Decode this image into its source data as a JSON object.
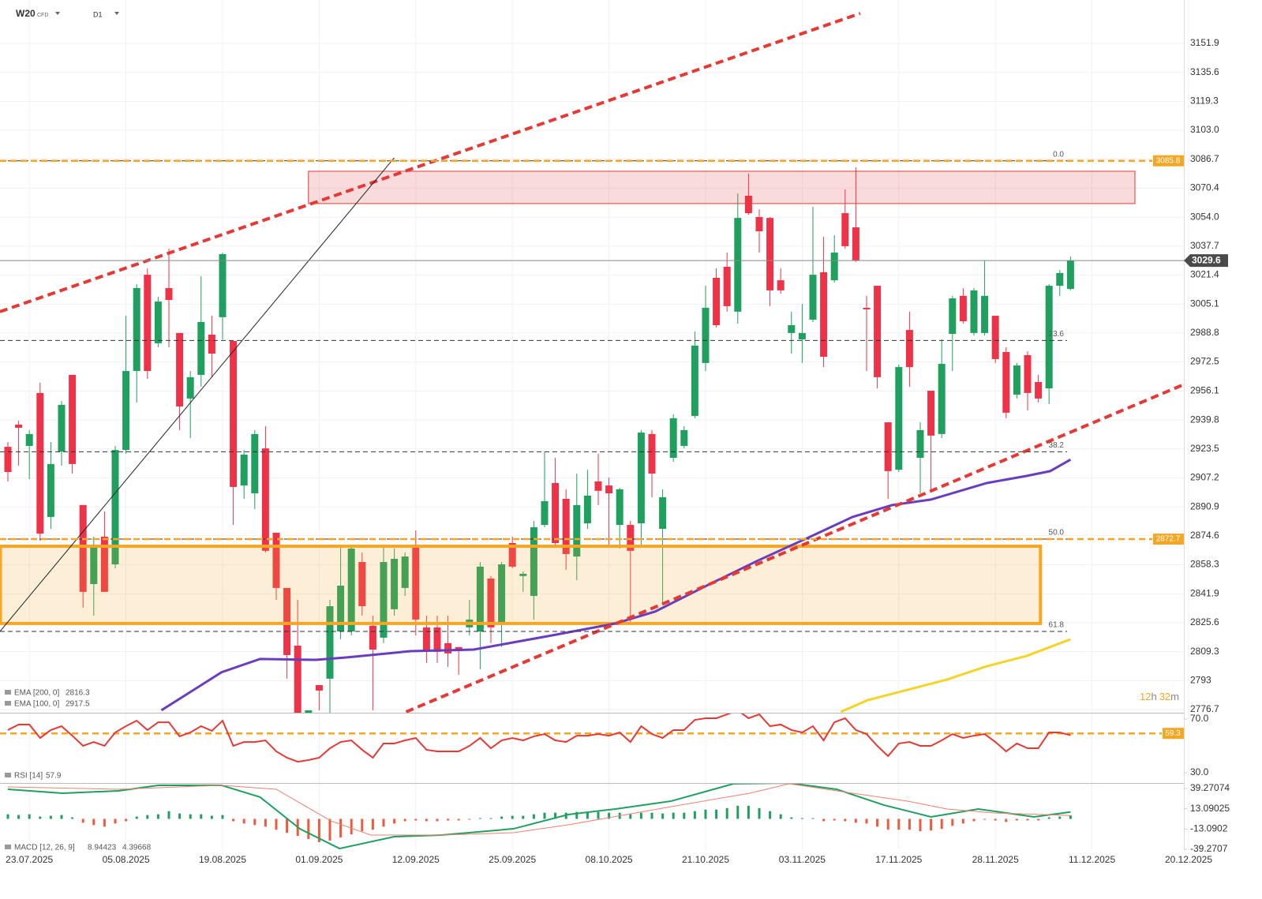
{
  "header": {
    "symbol": "W20",
    "instrument": "CFD",
    "timeframe": "D1",
    "countdown": [
      "12",
      "h",
      "32",
      "m"
    ]
  },
  "chart_data": [
    {
      "type": "candlestick",
      "xlim": [
        -0.735,
        109.56
      ],
      "xticks": [
        {
          "value": 2,
          "label": "23.07.2025"
        },
        {
          "value": 11,
          "label": "05.08.2025"
        },
        {
          "value": 20,
          "label": "19.08.2025"
        },
        {
          "value": 29,
          "label": "01.09.2025"
        },
        {
          "value": 38,
          "label": "12.09.2025"
        },
        {
          "value": 47,
          "label": "25.09.2025"
        },
        {
          "value": 56,
          "label": "08.10.2025"
        },
        {
          "value": 65,
          "label": "21.10.2025"
        },
        {
          "value": 74,
          "label": "03.11.2025"
        },
        {
          "value": 83,
          "label": "17.11.2025"
        },
        {
          "value": 92,
          "label": "28.11.2025"
        },
        {
          "value": 101,
          "label": "11.12.2025"
        },
        {
          "value": 110,
          "label": "20.12.2025"
        }
      ],
      "ylim": [
        2776.7,
        3151.9
      ],
      "yticks": [
        3151.9,
        3135.6,
        3119.3,
        {
          "value": 3103.0,
          "label": "3103.0"
        },
        3086.7,
        3070.4,
        {
          "value": 3054.0,
          "label": "3054.0"
        },
        3037.7,
        3021.4,
        3005.1,
        2988.8,
        2972.5,
        2956.1,
        2939.8,
        2923.5,
        2907.2,
        2890.9,
        2874.6,
        2858.3,
        2841.9,
        2825.6,
        2809.3,
        2793.0,
        2776.7
      ],
      "up_color": "#1fa05f",
      "down_color": "#ee3348",
      "candles": {
        "open": [
          2924.7,
          2937.2,
          2925.2,
          2955.0,
          2885.2,
          2922.0,
          2965.2,
          2891.9,
          2847.4,
          2874.1,
          2858.5,
          2922.9,
          2967.4,
          3021.6,
          2983.0,
          3014.1,
          2988.8,
          2951.9,
          2965.2,
          2987.9,
          2997.7,
          2984.3,
          2902.9,
          2898.5,
          2923.8,
          2876.3,
          2845.2,
          2812.7,
          2774.1,
          2790.5,
          2794.1,
          2820.7,
          2820.7,
          2859.8,
          2823.9,
          2817.2,
          2833.2,
          2845.2,
          2869.6,
          2823.0,
          2823.0,
          2814.1,
          2811.9,
          2823.0,
          2820.7,
          2850.5,
          2825.2,
          2870.5,
          2851.9,
          2840.7,
          2880.7,
          2904.3,
          2895.4,
          2862.9,
          2881.6,
          2905.2,
          2902.9,
          2880.7,
          2880.7,
          2881.6,
          2931.9,
          2878.5,
          2918.5,
          2925.2,
          2942.1,
          2971.9,
          3019.9,
          3026.1,
          3000.8,
          3066.1,
          3054.1,
          3053.6,
          3018.5,
          2988.8,
          2985.2,
          2996.3,
          3023.0,
          3018.5,
          3056.3,
          3048.3,
          3003.0,
          3015.4,
          2938.5,
          2911.8,
          2990.5,
          2918.5,
          2956.3,
          2931.9,
          2988.3,
          3009.7,
          2988.8,
          2988.8,
          2998.5,
          2978.1,
          2954.1,
          2976.3,
          2961.2,
          2957.6,
          3015.4,
          3013.6
        ],
        "high": [
          2927.4,
          2939.4,
          2934.1,
          2960.8,
          2927.4,
          2950.5,
          2965.2,
          2891.9,
          2874.1,
          2888.3,
          2925.2,
          2998.5,
          3016.3,
          3025.2,
          3009.2,
          3036.3,
          2988.8,
          2967.4,
          3020.8,
          2998.5,
          3034.1,
          2984.3,
          2922.9,
          2934.1,
          2936.3,
          2876.3,
          2845.2,
          2838.5,
          2776.3,
          2790.5,
          2838.5,
          2869.6,
          2869.6,
          2865.2,
          2829.6,
          2869.6,
          2867.4,
          2865.2,
          2877.6,
          2829.6,
          2829.6,
          2829.6,
          2811.9,
          2838.5,
          2859.8,
          2851.9,
          2859.8,
          2874.1,
          2854.5,
          2883.0,
          2922.0,
          2918.5,
          2900.8,
          2909.6,
          2911.8,
          2920.8,
          2907.4,
          2901.6,
          2883.0,
          2934.1,
          2934.1,
          2900.8,
          2943.0,
          2936.3,
          2989.6,
          3015.4,
          3025.2,
          3034.1,
          3067.4,
          3078.6,
          3058.5,
          3054.1,
          3025.2,
          3000.8,
          3005.2,
          3059.9,
          3043.0,
          3043.9,
          3069.7,
          3082.1,
          3009.7,
          3015.4,
          2938.5,
          2971.0,
          3000.8,
          2938.5,
          2956.3,
          2985.2,
          3009.7,
          3014.1,
          3014.1,
          3029.7,
          2998.5,
          2980.8,
          2971.9,
          2978.5,
          2965.2,
          3016.3,
          3024.3,
          3031.9
        ],
        "low": [
          2905.2,
          2914.1,
          2906.5,
          2871.8,
          2878.5,
          2914.1,
          2909.6,
          2834.1,
          2829.6,
          2843.0,
          2856.3,
          2920.8,
          2949.7,
          2963.0,
          2980.8,
          2980.8,
          2934.1,
          2929.6,
          2958.5,
          2963.9,
          2985.2,
          2880.7,
          2895.4,
          2889.6,
          2865.2,
          2838.5,
          2794.1,
          2774.1,
          2774.1,
          2776.3,
          2774.1,
          2816.3,
          2818.5,
          2829.6,
          2776.3,
          2814.1,
          2829.6,
          2840.7,
          2818.5,
          2803.0,
          2803.0,
          2800.7,
          2796.3,
          2818.5,
          2799.4,
          2814.1,
          2811.9,
          2856.3,
          2843.0,
          2827.4,
          2879.4,
          2869.6,
          2855.4,
          2849.6,
          2878.5,
          2891.9,
          2869.6,
          2867.4,
          2825.2,
          2869.6,
          2896.3,
          2836.3,
          2916.3,
          2923.8,
          2940.8,
          2967.4,
          2991.9,
          3000.8,
          2994.1,
          3055.4,
          3034.1,
          3003.9,
          3011.0,
          2977.2,
          2971.9,
          2995.0,
          2969.6,
          3017.2,
          3036.3,
          3028.8,
          2967.4,
          2957.6,
          2895.4,
          2910.5,
          2958.5,
          2898.5,
          2899.9,
          2929.6,
          2967.4,
          2994.1,
          2987.4,
          2987.4,
          2971.9,
          2940.8,
          2951.9,
          2945.2,
          2949.7,
          2948.8,
          3009.7,
          3012.8
        ],
        "close": [
          2910.5,
          2935.4,
          2931.9,
          2875.8,
          2915.0,
          2948.3,
          2915.0,
          2843.0,
          2869.6,
          2843.0,
          2922.9,
          2967.4,
          3014.1,
          2967.4,
          3006.5,
          3007.4,
          2947.4,
          2963.9,
          2995.0,
          2977.2,
          3033.2,
          2902.1,
          2920.3,
          2931.9,
          2866.1,
          2845.2,
          2807.4,
          2774.1,
          2776.3,
          2787.4,
          2834.9,
          2846.5,
          2867.4,
          2834.9,
          2810.5,
          2859.8,
          2861.6,
          2862.9,
          2827.4,
          2809.2,
          2809.2,
          2808.3,
          2809.6,
          2827.4,
          2857.2,
          2823.0,
          2858.5,
          2857.2,
          2853.2,
          2879.4,
          2894.1,
          2870.5,
          2864.3,
          2891.9,
          2897.2,
          2899.9,
          2898.5,
          2900.8,
          2866.1,
          2932.7,
          2909.6,
          2896.3,
          2940.8,
          2934.1,
          2981.7,
          3003.0,
          2993.2,
          3003.9,
          3053.6,
          3056.3,
          3046.1,
          3012.8,
          3012.8,
          2993.2,
          2988.8,
          3021.6,
          2975.4,
          3034.1,
          3037.7,
          3029.7,
          3002.1,
          2963.9,
          2911.0,
          2969.6,
          2969.6,
          2934.1,
          2931.0,
          2971.4,
          3008.3,
          2995.4,
          3012.8,
          3009.7,
          2974.1,
          2943.9,
          2970.5,
          2955.0,
          2951.9,
          3015.4,
          3022.6,
          3029.6
        ]
      },
      "series": [
        {
          "name": "EMA [200, 0]",
          "color": "#f5d327",
          "x": [
            77.6,
            80.1,
            83.8,
            87.5,
            91.2,
            94.9,
            99
          ],
          "values": [
            2775.4,
            2782.0,
            2787.8,
            2793.6,
            2801.1,
            2806.9,
            2816.3
          ]
        },
        {
          "name": "EMA [100, 0]",
          "color": "#6a3dbf",
          "x": [
            14.3,
            19.9,
            23.5,
            28.7,
            31.6,
            37.5,
            43.4,
            50.7,
            56.6,
            60.3,
            65.4,
            69.9,
            74.3,
            78.7,
            82.4,
            86.0,
            91.2,
            94.9,
            97.1,
            99
          ],
          "values": [
            2776.3,
            2797.7,
            2805.2,
            2804.7,
            2806.1,
            2809.6,
            2810.5,
            2818.5,
            2825.2,
            2831.9,
            2847.4,
            2860.7,
            2872.8,
            2885.2,
            2891.9,
            2895.0,
            2904.3,
            2908.3,
            2911.0,
            2917.5
          ]
        }
      ],
      "levels": [
        {
          "value": 3085.8,
          "color": "#f5a623"
        },
        {
          "value": 2872.7,
          "color": "#f5a623"
        }
      ],
      "fib_levels": [
        {
          "label": "0.0",
          "value": 3085.8
        },
        {
          "label": "23.6",
          "value": 2984.6
        },
        {
          "label": "38.2",
          "value": 2921.9
        },
        {
          "label": "50.0",
          "value": 2872.7
        },
        {
          "label": "61.8",
          "value": 2820.7
        }
      ],
      "zones": [
        {
          "x": [
            28.0,
            105.0
          ],
          "y": [
            3061.7,
            3079.9
          ],
          "color": "#e53935"
        },
        {
          "x": [
            -0.7,
            96.2
          ],
          "y": [
            2825.2,
            2868.7
          ],
          "color": "#f5a623"
        }
      ],
      "trendlines": [
        {
          "x": [
            -0.74,
            79.4
          ],
          "y": [
            3000.8,
            3168.8
          ],
          "color": "#e53935",
          "dashed": true
        },
        {
          "x": [
            37.1,
            109.6
          ],
          "y": [
            2775.4,
            2959.9
          ],
          "color": "#e53935",
          "dashed": true
        },
        {
          "x": [
            -0.74,
            36.0
          ],
          "y": [
            2820.7,
            3087.5
          ],
          "color": "#222222",
          "dashed": false
        }
      ]
    },
    {
      "type": "line",
      "ylim": [
        30,
        70
      ],
      "yticks": [
        {
          "value": 70,
          "label": "70.0"
        },
        {
          "value": 30,
          "label": "30.0"
        }
      ],
      "levels": [
        {
          "value": 59.3,
          "color": "#f5a623"
        }
      ],
      "series": [
        {
          "name": "RSI [14]",
          "color": "#e53935",
          "values": [
            61.8,
            65.9,
            65.9,
            55.9,
            61.8,
            64.7,
            57.6,
            50.0,
            52.9,
            50.0,
            60.0,
            64.7,
            68.8,
            61.8,
            67.6,
            67.6,
            57.1,
            60.0,
            64.7,
            61.2,
            68.8,
            50.0,
            52.9,
            52.9,
            54.1,
            45.9,
            41.2,
            38.2,
            39.4,
            41.2,
            48.2,
            52.9,
            54.1,
            47.1,
            41.2,
            51.8,
            51.8,
            54.1,
            55.9,
            47.1,
            45.9,
            45.9,
            45.9,
            50.0,
            55.9,
            48.2,
            54.1,
            55.9,
            54.1,
            57.1,
            58.8,
            54.1,
            52.9,
            57.6,
            57.6,
            58.8,
            57.6,
            60.0,
            52.9,
            64.7,
            58.8,
            55.9,
            61.8,
            61.8,
            69.4,
            70.6,
            70.6,
            73.5,
            76.5,
            70.6,
            73.5,
            64.7,
            65.9,
            61.8,
            60.0,
            64.7,
            54.1,
            67.6,
            70.6,
            61.8,
            58.8,
            50.0,
            42.4,
            51.8,
            52.9,
            50.0,
            50.0,
            54.1,
            58.8,
            55.9,
            57.6,
            58.8,
            52.9,
            45.9,
            51.8,
            48.2,
            48.2,
            60.0,
            60.0,
            57.9
          ]
        }
      ]
    },
    {
      "type": "macd",
      "legend_label": "MACD [12, 26, 9]",
      "ylim": [
        -39.2707,
        39.27074
      ],
      "yticks": [
        39.27074,
        13.09025,
        -13.0902,
        -39.2707
      ],
      "up_color": "#1fa05f",
      "down_color": "#ee5a3c",
      "histogram": [
        6,
        5,
        6,
        3,
        4,
        5,
        2,
        -5,
        -8,
        -10,
        -6,
        -3,
        3,
        5,
        6,
        10,
        7,
        6,
        6,
        4,
        5,
        -3,
        -6,
        -8,
        -10,
        -14,
        -18,
        -22,
        -26,
        -30,
        -28,
        -24,
        -20,
        -16,
        -14,
        -10,
        -6,
        -3,
        -2,
        -3,
        -3,
        -2,
        -2,
        -1,
        1,
        1,
        3,
        4,
        4,
        6,
        8,
        8,
        8,
        9,
        9,
        9,
        8,
        8,
        6,
        8,
        8,
        7,
        8,
        8,
        10,
        12,
        12,
        14,
        17,
        17,
        14,
        10,
        6,
        2,
        1,
        1,
        -3,
        -2,
        -3,
        -5,
        -6,
        -10,
        -14,
        -14,
        -14,
        -16,
        -15,
        -13,
        -9,
        -6,
        -3,
        -1,
        -2,
        -4,
        -2,
        -2,
        -2,
        2,
        3,
        4.5
      ],
      "series": [
        {
          "color": "#1fa05f",
          "x": [
            0,
            5.1,
            10.3,
            14.0,
            19.9,
            23.5,
            27.2,
            30.9,
            36.0,
            40.4,
            47.1,
            52.2,
            56.6,
            61.8,
            67.6,
            72.8,
            77.2,
            81.6,
            86.0,
            90.4,
            95.6,
            99
          ],
          "values": [
            38.3,
            33.2,
            36.2,
            43.4,
            43.4,
            28.1,
            -12.8,
            -38.3,
            -23.0,
            -20.9,
            -12.8,
            5.6,
            12.8,
            23.0,
            45.4,
            46.4,
            38.3,
            17.9,
            2.6,
            12.8,
            2.6,
            8.94423
          ]
        },
        {
          "color": "#f08070",
          "x": [
            0,
            10.3,
            19.9,
            25.0,
            30.1,
            33.8,
            40.4,
            47.1,
            52.2,
            61.8,
            69.1,
            72.8,
            78.7,
            83.8,
            87.5,
            91.9,
            99
          ],
          "values": [
            41.3,
            38.3,
            43.4,
            38.3,
            -2.6,
            -20.9,
            -20.9,
            -17.9,
            -7.7,
            15.8,
            33.2,
            45.4,
            33.2,
            23.0,
            12.8,
            7.7,
            4.39668
          ]
        }
      ]
    }
  ]
}
